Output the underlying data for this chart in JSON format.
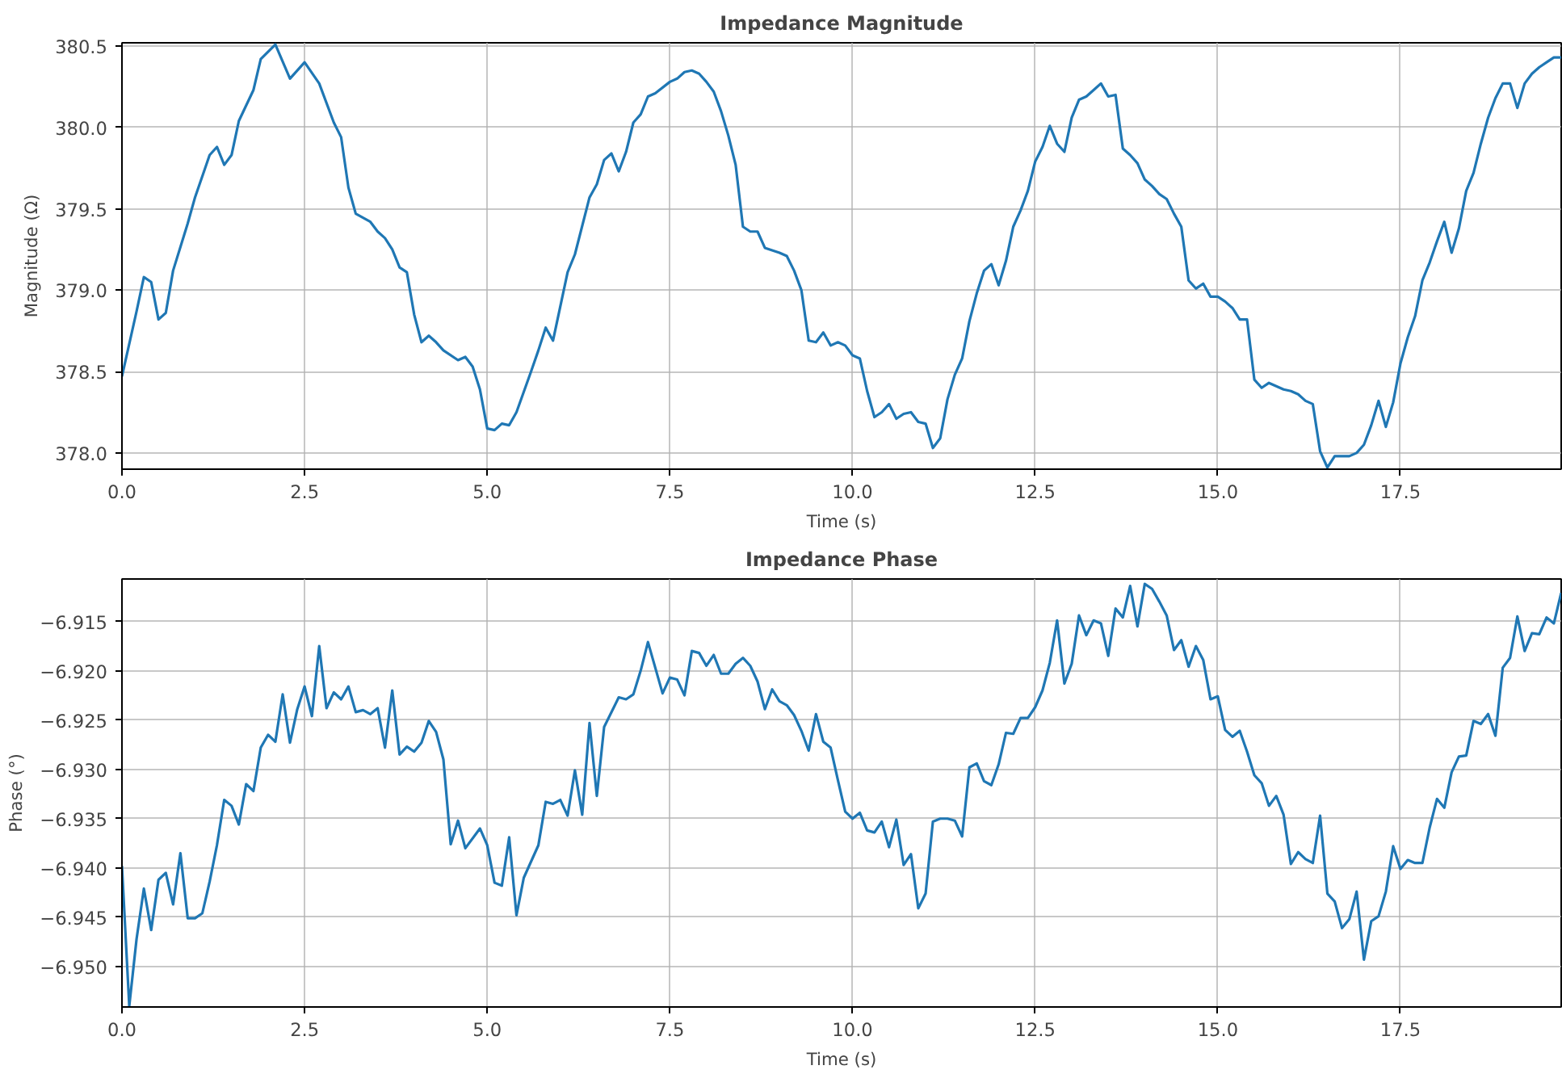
{
  "chart_data": [
    {
      "type": "line",
      "title": "Impedance Magnitude",
      "xlabel": "Time (s)",
      "ylabel": "Magnitude (Ω)",
      "grid": true,
      "xlim": [
        0,
        19.7
      ],
      "ylim": [
        377.9,
        380.52
      ],
      "xticks": [
        {
          "value": 0,
          "label": "0.0"
        },
        {
          "value": 2.5,
          "label": "2.5"
        },
        {
          "value": 5,
          "label": "5.0"
        },
        {
          "value": 7.5,
          "label": "7.5"
        },
        {
          "value": 10,
          "label": "10.0"
        },
        {
          "value": 12.5,
          "label": "12.5"
        },
        {
          "value": 15,
          "label": "15.0"
        },
        {
          "value": 17.5,
          "label": "17.5"
        }
      ],
      "yticks": [
        {
          "value": 378,
          "label": "378.0"
        },
        {
          "value": 378.5,
          "label": "378.5"
        },
        {
          "value": 379,
          "label": "379.0"
        },
        {
          "value": 379.5,
          "label": "379.5"
        },
        {
          "value": 380,
          "label": "380.0"
        },
        {
          "value": 380.5,
          "label": "380.5"
        }
      ],
      "series": [
        {
          "color": "#1f77b4",
          "x": [
            0,
            0.2,
            0.3,
            0.4,
            0.5,
            0.6,
            0.7,
            0.9,
            1.0,
            1.2,
            1.3,
            1.4,
            1.5,
            1.6,
            1.8,
            1.9,
            2.1,
            2.3,
            2.5,
            2.7,
            2.9,
            3.0,
            3.1,
            3.2,
            3.4,
            3.5,
            3.6,
            3.7,
            3.8,
            3.9,
            4.0,
            4.1,
            4.2,
            4.3,
            4.4,
            4.6,
            4.7,
            4.8,
            4.9,
            5.0,
            5.1,
            5.2,
            5.3,
            5.4,
            5.6,
            5.7,
            5.8,
            5.9,
            6.1,
            6.2,
            6.4,
            6.5,
            6.6,
            6.7,
            6.8,
            6.9,
            7.0,
            7.1,
            7.2,
            7.3,
            7.5,
            7.6,
            7.7,
            7.8,
            7.9,
            8.0,
            8.1,
            8.2,
            8.3,
            8.4,
            8.5,
            8.6,
            8.7,
            8.8,
            9.0,
            9.1,
            9.2,
            9.3,
            9.4,
            9.5,
            9.6,
            9.7,
            9.8,
            9.9,
            10.0,
            10.1,
            10.2,
            10.3,
            10.4,
            10.5,
            10.6,
            10.7,
            10.8,
            10.9,
            11.0,
            11.1,
            11.2,
            11.3,
            11.4,
            11.5,
            11.6,
            11.7,
            11.8,
            11.9,
            12.0,
            12.1,
            12.2,
            12.3,
            12.4,
            12.5,
            12.6,
            12.7,
            12.8,
            12.9,
            13.0,
            13.1,
            13.2,
            13.3,
            13.4,
            13.5,
            13.6,
            13.7,
            13.8,
            13.9,
            14.0,
            14.1,
            14.2,
            14.3,
            14.4,
            14.5,
            14.6,
            14.7,
            14.8,
            14.9,
            15.0,
            15.1,
            15.2,
            15.3,
            15.4,
            15.5,
            15.6,
            15.7,
            15.8,
            15.9,
            16.0,
            16.1,
            16.2,
            16.3,
            16.4,
            16.5,
            16.6,
            16.7,
            16.8,
            16.9,
            17.0,
            17.1,
            17.2,
            17.3,
            17.4,
            17.5,
            17.6,
            17.7,
            17.8,
            17.9,
            18.0,
            18.1,
            18.2,
            18.3,
            18.4,
            18.5,
            18.6,
            18.7,
            18.8,
            18.9,
            19.0,
            19.1,
            19.2,
            19.3,
            19.4,
            19.5,
            19.6,
            19.7
          ],
          "values": [
            378.47,
            378.87,
            379.08,
            379.05,
            378.82,
            378.86,
            379.12,
            379.41,
            379.57,
            379.83,
            379.88,
            379.77,
            379.83,
            380.04,
            380.23,
            380.42,
            380.51,
            380.3,
            380.4,
            380.27,
            380.03,
            379.94,
            379.63,
            379.47,
            379.42,
            379.36,
            379.32,
            379.25,
            379.14,
            379.11,
            378.85,
            378.68,
            378.72,
            378.68,
            378.63,
            378.57,
            378.59,
            378.53,
            378.39,
            378.15,
            378.14,
            378.18,
            378.17,
            378.25,
            378.5,
            378.63,
            378.77,
            378.69,
            379.11,
            379.22,
            379.57,
            379.65,
            379.8,
            379.84,
            379.73,
            379.85,
            380.03,
            380.08,
            380.19,
            380.21,
            380.28,
            380.3,
            380.34,
            380.35,
            380.33,
            380.28,
            380.22,
            380.1,
            379.95,
            379.77,
            379.39,
            379.36,
            379.36,
            379.26,
            379.23,
            379.21,
            379.12,
            379.0,
            378.69,
            378.68,
            378.74,
            378.66,
            378.68,
            378.66,
            378.6,
            378.58,
            378.38,
            378.22,
            378.25,
            378.3,
            378.21,
            378.24,
            378.25,
            378.19,
            378.18,
            378.03,
            378.09,
            378.33,
            378.48,
            378.58,
            378.81,
            378.98,
            379.12,
            379.16,
            379.03,
            379.18,
            379.39,
            379.49,
            379.61,
            379.79,
            379.88,
            380.01,
            379.9,
            379.85,
            380.06,
            380.17,
            380.19,
            380.23,
            380.27,
            380.19,
            380.2,
            379.87,
            379.83,
            379.78,
            379.68,
            379.64,
            379.59,
            379.56,
            379.47,
            379.39,
            379.06,
            379.01,
            379.04,
            378.96,
            378.96,
            378.93,
            378.89,
            378.82,
            378.82,
            378.45,
            378.4,
            378.43,
            378.41,
            378.39,
            378.38,
            378.36,
            378.32,
            378.3,
            378.01,
            377.91,
            377.98,
            377.98,
            377.98,
            378.0,
            378.05,
            378.17,
            378.32,
            378.16,
            378.31,
            378.55,
            378.71,
            378.84,
            379.06,
            379.17,
            379.3,
            379.42,
            379.23,
            379.38,
            379.61,
            379.72,
            379.9,
            380.06,
            380.18,
            380.27,
            380.27,
            380.12,
            380.27,
            380.33,
            380.37,
            380.4,
            380.43,
            380.43
          ]
        }
      ]
    },
    {
      "type": "line",
      "title": "Impedance Phase",
      "xlabel": "Time (s)",
      "ylabel": "Phase (°)",
      "grid": true,
      "xlim": [
        0,
        19.7
      ],
      "ylim": [
        -6.9541,
        -6.9107
      ],
      "xticks": [
        {
          "value": 0,
          "label": "0.0"
        },
        {
          "value": 2.5,
          "label": "2.5"
        },
        {
          "value": 5,
          "label": "5.0"
        },
        {
          "value": 7.5,
          "label": "7.5"
        },
        {
          "value": 10,
          "label": "10.0"
        },
        {
          "value": 12.5,
          "label": "12.5"
        },
        {
          "value": 15,
          "label": "15.0"
        },
        {
          "value": 17.5,
          "label": "17.5"
        }
      ],
      "yticks": [
        {
          "value": -6.95,
          "label": "−6.950"
        },
        {
          "value": -6.945,
          "label": "−6.945"
        },
        {
          "value": -6.94,
          "label": "−6.940"
        },
        {
          "value": -6.935,
          "label": "−6.935"
        },
        {
          "value": -6.93,
          "label": "−6.930"
        },
        {
          "value": -6.925,
          "label": "−6.925"
        },
        {
          "value": -6.92,
          "label": "−6.920"
        },
        {
          "value": -6.915,
          "label": "−6.915"
        }
      ],
      "series": [
        {
          "color": "#1f77b4",
          "x": [
            0,
            0.1,
            0.2,
            0.3,
            0.4,
            0.5,
            0.6,
            0.7,
            0.8,
            0.9,
            1.0,
            1.1,
            1.2,
            1.3,
            1.4,
            1.5,
            1.6,
            1.7,
            1.8,
            1.9,
            2.0,
            2.1,
            2.2,
            2.3,
            2.4,
            2.5,
            2.6,
            2.7,
            2.8,
            2.9,
            3.0,
            3.1,
            3.2,
            3.3,
            3.4,
            3.5,
            3.6,
            3.7,
            3.8,
            3.9,
            4.0,
            4.1,
            4.2,
            4.3,
            4.4,
            4.5,
            4.6,
            4.7,
            4.9,
            5.0,
            5.1,
            5.2,
            5.3,
            5.4,
            5.5,
            5.7,
            5.8,
            5.9,
            6.0,
            6.1,
            6.2,
            6.3,
            6.4,
            6.5,
            6.6,
            6.8,
            6.9,
            7.0,
            7.1,
            7.2,
            7.4,
            7.5,
            7.6,
            7.7,
            7.8,
            7.9,
            8.0,
            8.1,
            8.2,
            8.3,
            8.4,
            8.5,
            8.6,
            8.7,
            8.8,
            8.9,
            9.0,
            9.1,
            9.2,
            9.3,
            9.4,
            9.5,
            9.6,
            9.7,
            9.8,
            9.9,
            10.0,
            10.1,
            10.2,
            10.3,
            10.4,
            10.5,
            10.6,
            10.7,
            10.8,
            10.9,
            11.0,
            11.1,
            11.2,
            11.3,
            11.4,
            11.5,
            11.6,
            11.7,
            11.8,
            11.9,
            12.0,
            12.1,
            12.2,
            12.3,
            12.4,
            12.5,
            12.6,
            12.7,
            12.8,
            12.9,
            13.0,
            13.1,
            13.2,
            13.3,
            13.4,
            13.5,
            13.6,
            13.7,
            13.8,
            13.9,
            14.0,
            14.1,
            14.2,
            14.3,
            14.4,
            14.5,
            14.6,
            14.7,
            14.8,
            14.9,
            15.0,
            15.1,
            15.2,
            15.3,
            15.4,
            15.5,
            15.6,
            15.7,
            15.8,
            15.9,
            16.0,
            16.1,
            16.2,
            16.3,
            16.4,
            16.5,
            16.6,
            16.7,
            16.8,
            16.9,
            17.0,
            17.1,
            17.2,
            17.3,
            17.4,
            17.5,
            17.6,
            17.7,
            17.8,
            17.9,
            18.0,
            18.1,
            18.2,
            18.3,
            18.4,
            18.5,
            18.6,
            18.7,
            18.8,
            18.9,
            19.0,
            19.1,
            19.2,
            19.3,
            19.4,
            19.5,
            19.6,
            19.7
          ],
          "values": [
            -6.9398,
            -6.954,
            -6.9472,
            -6.9421,
            -6.9463,
            -6.9412,
            -6.9405,
            -6.9437,
            -6.9385,
            -6.9451,
            -6.9451,
            -6.9446,
            -6.9414,
            -6.9377,
            -6.9331,
            -6.9337,
            -6.9356,
            -6.9315,
            -6.9322,
            -6.9278,
            -6.9265,
            -6.9272,
            -6.9224,
            -6.9273,
            -6.9239,
            -6.9216,
            -6.9246,
            -6.9175,
            -6.9238,
            -6.9222,
            -6.9229,
            -6.9216,
            -6.9242,
            -6.924,
            -6.9244,
            -6.9238,
            -6.9278,
            -6.922,
            -6.9285,
            -6.9277,
            -6.9282,
            -6.9273,
            -6.9251,
            -6.9262,
            -6.929,
            -6.9376,
            -6.9352,
            -6.938,
            -6.936,
            -6.9377,
            -6.9415,
            -6.9418,
            -6.9369,
            -6.9448,
            -6.941,
            -6.9377,
            -6.9333,
            -6.9335,
            -6.9331,
            -6.9347,
            -6.9301,
            -6.9346,
            -6.9253,
            -6.9327,
            -6.9257,
            -6.9227,
            -6.9229,
            -6.9224,
            -6.92,
            -6.9171,
            -6.9223,
            -6.9207,
            -6.9209,
            -6.9225,
            -6.918,
            -6.9182,
            -6.9195,
            -6.9184,
            -6.9203,
            -6.9203,
            -6.9193,
            -6.9187,
            -6.9195,
            -6.9211,
            -6.9239,
            -6.9219,
            -6.9231,
            -6.9235,
            -6.9245,
            -6.9261,
            -6.9281,
            -6.9244,
            -6.9272,
            -6.9278,
            -6.9311,
            -6.9343,
            -6.935,
            -6.9344,
            -6.9362,
            -6.9364,
            -6.9353,
            -6.9379,
            -6.9351,
            -6.9397,
            -6.9386,
            -6.9441,
            -6.9426,
            -6.9353,
            -6.935,
            -6.935,
            -6.9352,
            -6.9368,
            -6.9298,
            -6.9294,
            -6.9312,
            -6.9316,
            -6.9295,
            -6.9263,
            -6.9264,
            -6.9248,
            -6.9248,
            -6.9237,
            -6.922,
            -6.9192,
            -6.9149,
            -6.9213,
            -6.9193,
            -6.9144,
            -6.9164,
            -6.9149,
            -6.9152,
            -6.9185,
            -6.9137,
            -6.9146,
            -6.9114,
            -6.9155,
            -6.9112,
            -6.9117,
            -6.913,
            -6.9144,
            -6.9179,
            -6.9169,
            -6.9196,
            -6.9175,
            -6.9189,
            -6.9229,
            -6.9226,
            -6.926,
            -6.9267,
            -6.9261,
            -6.9282,
            -6.9306,
            -6.9314,
            -6.9337,
            -6.9327,
            -6.9346,
            -6.9396,
            -6.9384,
            -6.9391,
            -6.9395,
            -6.9347,
            -6.9426,
            -6.9434,
            -6.9461,
            -6.9452,
            -6.9424,
            -6.9493,
            -6.9454,
            -6.9449,
            -6.9424,
            -6.9378,
            -6.9401,
            -6.9392,
            -6.9395,
            -6.9395,
            -6.9359,
            -6.933,
            -6.9339,
            -6.9303,
            -6.9287,
            -6.9286,
            -6.9251,
            -6.9254,
            -6.9244,
            -6.9266,
            -6.9197,
            -6.9187,
            -6.9145,
            -6.918,
            -6.9162,
            -6.9163,
            -6.9146,
            -6.9152,
            -6.9121
          ]
        }
      ]
    }
  ]
}
